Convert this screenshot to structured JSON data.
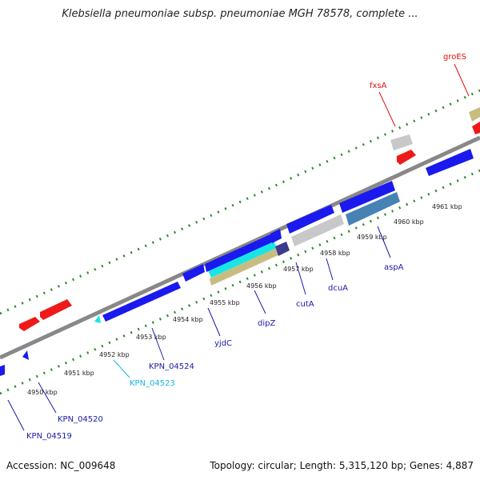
{
  "title": "Klebsiella pneumoniae subsp. pneumoniae MGH 78578, complete ...",
  "footer": {
    "accession": "Accession: NC_009648",
    "summary": "Topology: circular; Length: 5,315,120 bp; Genes: 4,887"
  },
  "colors": {
    "blue": "#1a1aee",
    "red": "#ee1a1a",
    "grey": "#c8c8c8",
    "cyan": "#19e5e5",
    "tan": "#c8bd80",
    "steel": "#4682b4",
    "navy": "#3c3c8c",
    "green": "#2d8a2d",
    "backbone": "#888888",
    "label_blue": "#1a1aa8",
    "label_cyan": "#19b5e5",
    "label_red": "#dd1111"
  },
  "kbp_ticks": [
    {
      "label": "4950 kbp"
    },
    {
      "label": "4951 kbp"
    },
    {
      "label": "4952 kbp"
    },
    {
      "label": "4953 kbp"
    },
    {
      "label": "4954 kbp"
    },
    {
      "label": "4955 kbp"
    },
    {
      "label": "4956 kbp"
    },
    {
      "label": "4957 kbp"
    },
    {
      "label": "4958 kbp"
    },
    {
      "label": "4959 kbp"
    },
    {
      "label": "4960 kbp"
    },
    {
      "label": "4961 kbp"
    }
  ],
  "gene_labels": [
    {
      "name": "KPN_04519",
      "color": "label_blue"
    },
    {
      "name": "KPN_04520",
      "color": "label_blue"
    },
    {
      "name": "KPN_04523",
      "color": "label_cyan"
    },
    {
      "name": "KPN_04524",
      "color": "label_blue"
    },
    {
      "name": "yjdC",
      "color": "label_blue"
    },
    {
      "name": "dipZ",
      "color": "label_blue"
    },
    {
      "name": "cutA",
      "color": "label_blue"
    },
    {
      "name": "dcuA",
      "color": "label_blue"
    },
    {
      "name": "aspA",
      "color": "label_blue"
    },
    {
      "name": "fxsA",
      "color": "label_red"
    },
    {
      "name": "groES",
      "color": "label_red"
    }
  ]
}
